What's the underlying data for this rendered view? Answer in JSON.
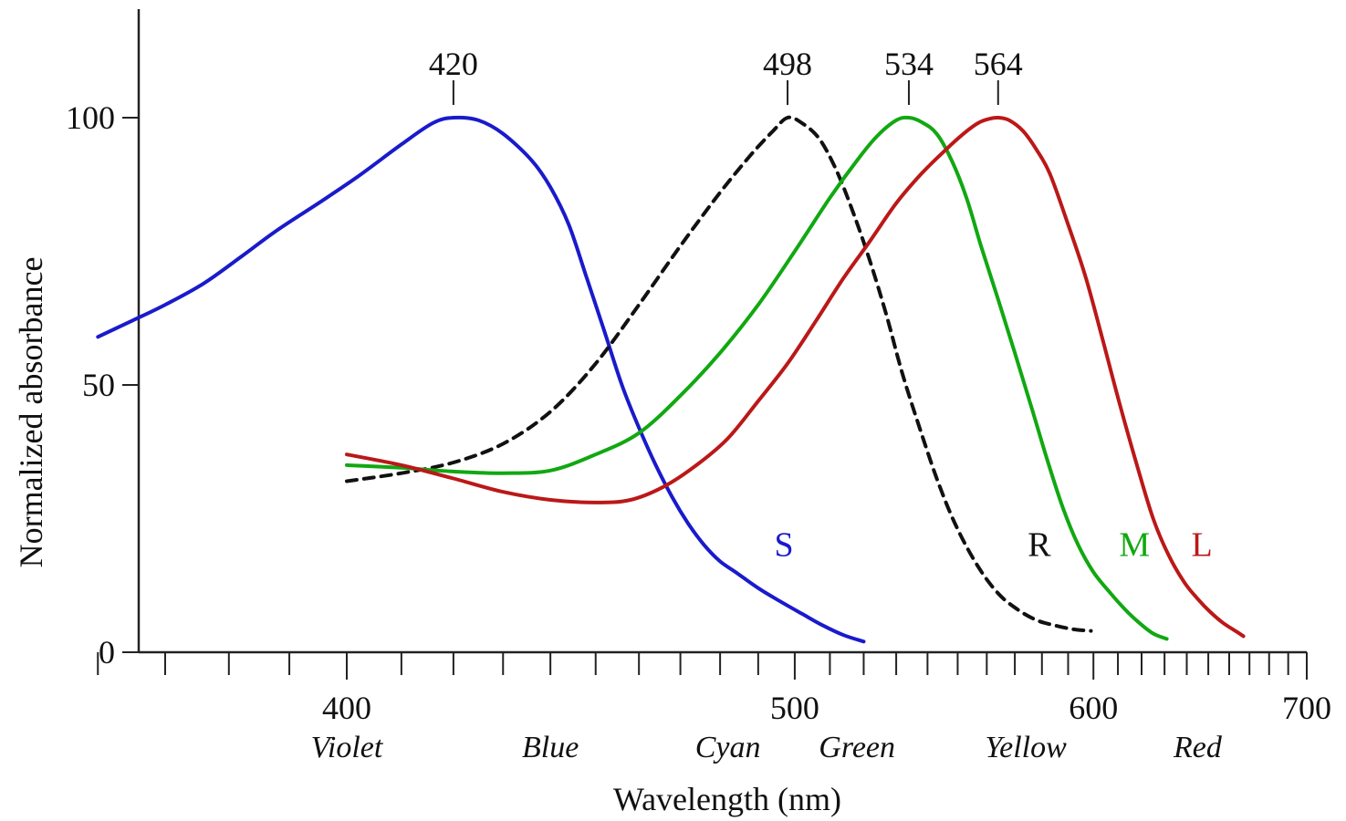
{
  "chart_data": {
    "type": "line",
    "title": "",
    "xlabel": "Wavelength (nm)",
    "ylabel": "Normalized absorbance",
    "x_scale": "reciprocal",
    "xlim": [
      350,
      700
    ],
    "ylim": [
      0,
      120
    ],
    "x_major_ticks": [
      {
        "value": 400,
        "label": "400"
      },
      {
        "value": 500,
        "label": "500"
      },
      {
        "value": 600,
        "label": "600"
      },
      {
        "value": 700,
        "label": "700"
      }
    ],
    "x_minor_ticks": [
      360,
      370,
      380,
      390,
      410,
      420,
      430,
      440,
      450,
      460,
      470,
      480,
      490,
      510,
      520,
      530,
      540,
      550,
      560,
      570,
      580,
      590,
      610,
      620,
      630,
      640,
      650,
      660,
      670,
      680,
      690
    ],
    "y_ticks": [
      {
        "value": 0,
        "label": "0"
      },
      {
        "value": 50,
        "label": "50"
      },
      {
        "value": 100,
        "label": "100"
      }
    ],
    "color_bands": [
      {
        "label": "Violet",
        "x": 400
      },
      {
        "label": "Blue",
        "x": 440
      },
      {
        "label": "Cyan",
        "x": 482
      },
      {
        "label": "Green",
        "x": 518
      },
      {
        "label": "Yellow",
        "x": 574
      },
      {
        "label": "Red",
        "x": 645
      }
    ],
    "peaks": [
      {
        "label": "420",
        "x": 420,
        "y": 100
      },
      {
        "label": "498",
        "x": 498,
        "y": 100
      },
      {
        "label": "534",
        "x": 534,
        "y": 100
      },
      {
        "label": "564",
        "x": 564,
        "y": 100
      }
    ],
    "series": [
      {
        "name": "S",
        "color": "#1a1acc",
        "dashed": false,
        "label_at": {
          "x": 497,
          "y": 18
        },
        "points": [
          [
            360,
            59
          ],
          [
            365,
            62
          ],
          [
            370,
            65
          ],
          [
            376,
            69
          ],
          [
            382,
            74
          ],
          [
            388,
            79
          ],
          [
            395,
            84
          ],
          [
            402,
            89
          ],
          [
            410,
            95
          ],
          [
            416,
            99
          ],
          [
            420,
            100
          ],
          [
            425,
            99.5
          ],
          [
            430,
            97
          ],
          [
            436,
            92
          ],
          [
            440,
            87
          ],
          [
            444,
            80
          ],
          [
            448,
            70
          ],
          [
            452,
            60
          ],
          [
            456,
            50
          ],
          [
            460,
            42
          ],
          [
            464,
            35
          ],
          [
            468,
            29
          ],
          [
            472,
            24
          ],
          [
            476,
            20
          ],
          [
            480,
            17
          ],
          [
            484,
            15
          ],
          [
            490,
            12
          ],
          [
            496,
            9.5
          ],
          [
            502,
            7.2
          ],
          [
            508,
            5
          ],
          [
            514,
            3.2
          ],
          [
            520,
            2
          ]
        ]
      },
      {
        "name": "R",
        "color": "#111111",
        "dashed": true,
        "label_at": {
          "x": 579,
          "y": 18
        },
        "points": [
          [
            400,
            32
          ],
          [
            410,
            33.5
          ],
          [
            420,
            35.5
          ],
          [
            430,
            39
          ],
          [
            440,
            45
          ],
          [
            450,
            54
          ],
          [
            460,
            65
          ],
          [
            470,
            76
          ],
          [
            480,
            86
          ],
          [
            488,
            93
          ],
          [
            494,
            97.5
          ],
          [
            498,
            100
          ],
          [
            502,
            99
          ],
          [
            507,
            96
          ],
          [
            512,
            90
          ],
          [
            517,
            82
          ],
          [
            522,
            73
          ],
          [
            527,
            63
          ],
          [
            532,
            52
          ],
          [
            538,
            41
          ],
          [
            544,
            31
          ],
          [
            550,
            23
          ],
          [
            557,
            16
          ],
          [
            564,
            11
          ],
          [
            571,
            8
          ],
          [
            578,
            6
          ],
          [
            585,
            5
          ],
          [
            592,
            4.3
          ],
          [
            599,
            4
          ]
        ]
      },
      {
        "name": "M",
        "color": "#11a811",
        "dashed": false,
        "label_at": {
          "x": 617,
          "y": 18
        },
        "points": [
          [
            400,
            35
          ],
          [
            410,
            34.5
          ],
          [
            420,
            33.8
          ],
          [
            430,
            33.5
          ],
          [
            440,
            34
          ],
          [
            450,
            37
          ],
          [
            460,
            41
          ],
          [
            470,
            48
          ],
          [
            480,
            56
          ],
          [
            490,
            65
          ],
          [
            500,
            75
          ],
          [
            510,
            85
          ],
          [
            518,
            92
          ],
          [
            524,
            96.5
          ],
          [
            530,
            99.5
          ],
          [
            534,
            100
          ],
          [
            538,
            99.2
          ],
          [
            543,
            97
          ],
          [
            548,
            92
          ],
          [
            553,
            85
          ],
          [
            558,
            76
          ],
          [
            564,
            66
          ],
          [
            570,
            56
          ],
          [
            576,
            46
          ],
          [
            582,
            36
          ],
          [
            588,
            27
          ],
          [
            594,
            20
          ],
          [
            600,
            15
          ],
          [
            607,
            11
          ],
          [
            613,
            8
          ],
          [
            619,
            5.5
          ],
          [
            625,
            3.5
          ],
          [
            631,
            2.5
          ]
        ]
      },
      {
        "name": "L",
        "color": "#bb1818",
        "dashed": false,
        "label_at": {
          "x": 647,
          "y": 18
        },
        "points": [
          [
            400,
            37
          ],
          [
            410,
            35
          ],
          [
            420,
            32.5
          ],
          [
            430,
            30
          ],
          [
            440,
            28.5
          ],
          [
            450,
            28
          ],
          [
            458,
            28.5
          ],
          [
            466,
            31
          ],
          [
            474,
            35
          ],
          [
            482,
            40
          ],
          [
            490,
            47
          ],
          [
            498,
            54
          ],
          [
            506,
            62
          ],
          [
            514,
            70
          ],
          [
            522,
            77
          ],
          [
            530,
            84
          ],
          [
            538,
            89.5
          ],
          [
            546,
            94
          ],
          [
            552,
            97
          ],
          [
            557,
            99
          ],
          [
            561,
            99.8
          ],
          [
            564,
            100
          ],
          [
            568,
            99.5
          ],
          [
            573,
            97.5
          ],
          [
            578,
            94
          ],
          [
            583,
            89.5
          ],
          [
            590,
            80
          ],
          [
            597,
            70
          ],
          [
            604,
            58
          ],
          [
            611,
            46
          ],
          [
            618,
            35
          ],
          [
            625,
            25
          ],
          [
            632,
            18
          ],
          [
            639,
            13
          ],
          [
            645,
            10
          ],
          [
            651,
            7.5
          ],
          [
            657,
            5.5
          ],
          [
            663,
            4
          ],
          [
            667,
            3
          ]
        ]
      }
    ]
  }
}
